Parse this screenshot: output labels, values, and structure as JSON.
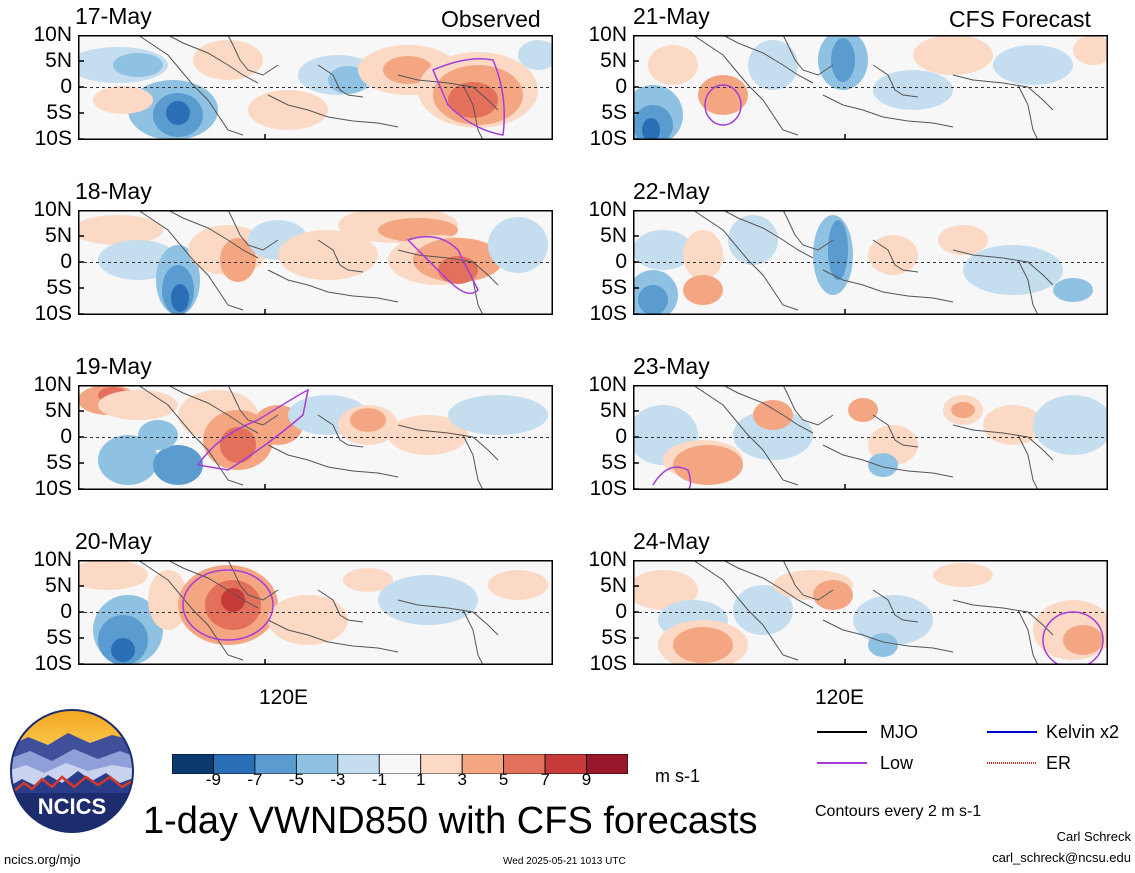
{
  "colors": {
    "neg9": "#0b3a6e",
    "neg7": "#2a6fb5",
    "neg5": "#5a9bd0",
    "neg3": "#8fc2e2",
    "neg1": "#c4ddef",
    "zero": "#f7f7f7",
    "pos1": "#fbd9c5",
    "pos3": "#f4a683",
    "pos5": "#e3705a",
    "pos7": "#c63a3a",
    "pos9": "#99172b",
    "pos11": "#64001f",
    "low_contour": "#a43dd6",
    "mjo": "#000000",
    "kelvin": "#0000cc",
    "er": "#cc2222",
    "coast": "#555555"
  },
  "left_header": "Observed",
  "right_header": "CFS Forecast",
  "lat_labels": [
    "10N",
    "5N",
    "0",
    "5S",
    "10S"
  ],
  "lon_label": "120E",
  "panels_observed": [
    {
      "date": "17-May"
    },
    {
      "date": "18-May"
    },
    {
      "date": "19-May"
    },
    {
      "date": "20-May"
    }
  ],
  "panels_forecast": [
    {
      "date": "21-May"
    },
    {
      "date": "22-May"
    },
    {
      "date": "23-May"
    },
    {
      "date": "24-May"
    }
  ],
  "colorbar": {
    "labels": [
      "-9",
      "-7",
      "-5",
      "-3",
      "-1",
      "1",
      "3",
      "5",
      "7",
      "9"
    ],
    "units": "m s-1"
  },
  "legend": {
    "mjo": "MJO",
    "low": "Low",
    "kelvin": "Kelvin x2",
    "er": "ER",
    "contours": "Contours every 2 m s-1"
  },
  "logo_text": "NCICS",
  "title": "1-day VWND850 with CFS forecasts",
  "footer": {
    "url": "ncics.org/mjo",
    "timestamp": "Wed 2025-05-21 1013 UTC",
    "author": "Carl Schreck",
    "email": "carl_schreck@ncsu.edu"
  },
  "chart_data": {
    "type": "heatmap",
    "variable": "VWND850 (1-day)",
    "units": "m s-1",
    "lat_range": [
      "10S",
      "10N"
    ],
    "levels": [
      -9,
      -7,
      -5,
      -3,
      -1,
      1,
      3,
      5,
      7,
      9
    ],
    "panels": [
      {
        "date": "17-May",
        "group": "Observed"
      },
      {
        "date": "18-May",
        "group": "Observed"
      },
      {
        "date": "19-May",
        "group": "Observed"
      },
      {
        "date": "20-May",
        "group": "Observed"
      },
      {
        "date": "21-May",
        "group": "CFS Forecast"
      },
      {
        "date": "22-May",
        "group": "CFS Forecast"
      },
      {
        "date": "23-May",
        "group": "CFS Forecast"
      },
      {
        "date": "24-May",
        "group": "CFS Forecast"
      }
    ]
  }
}
